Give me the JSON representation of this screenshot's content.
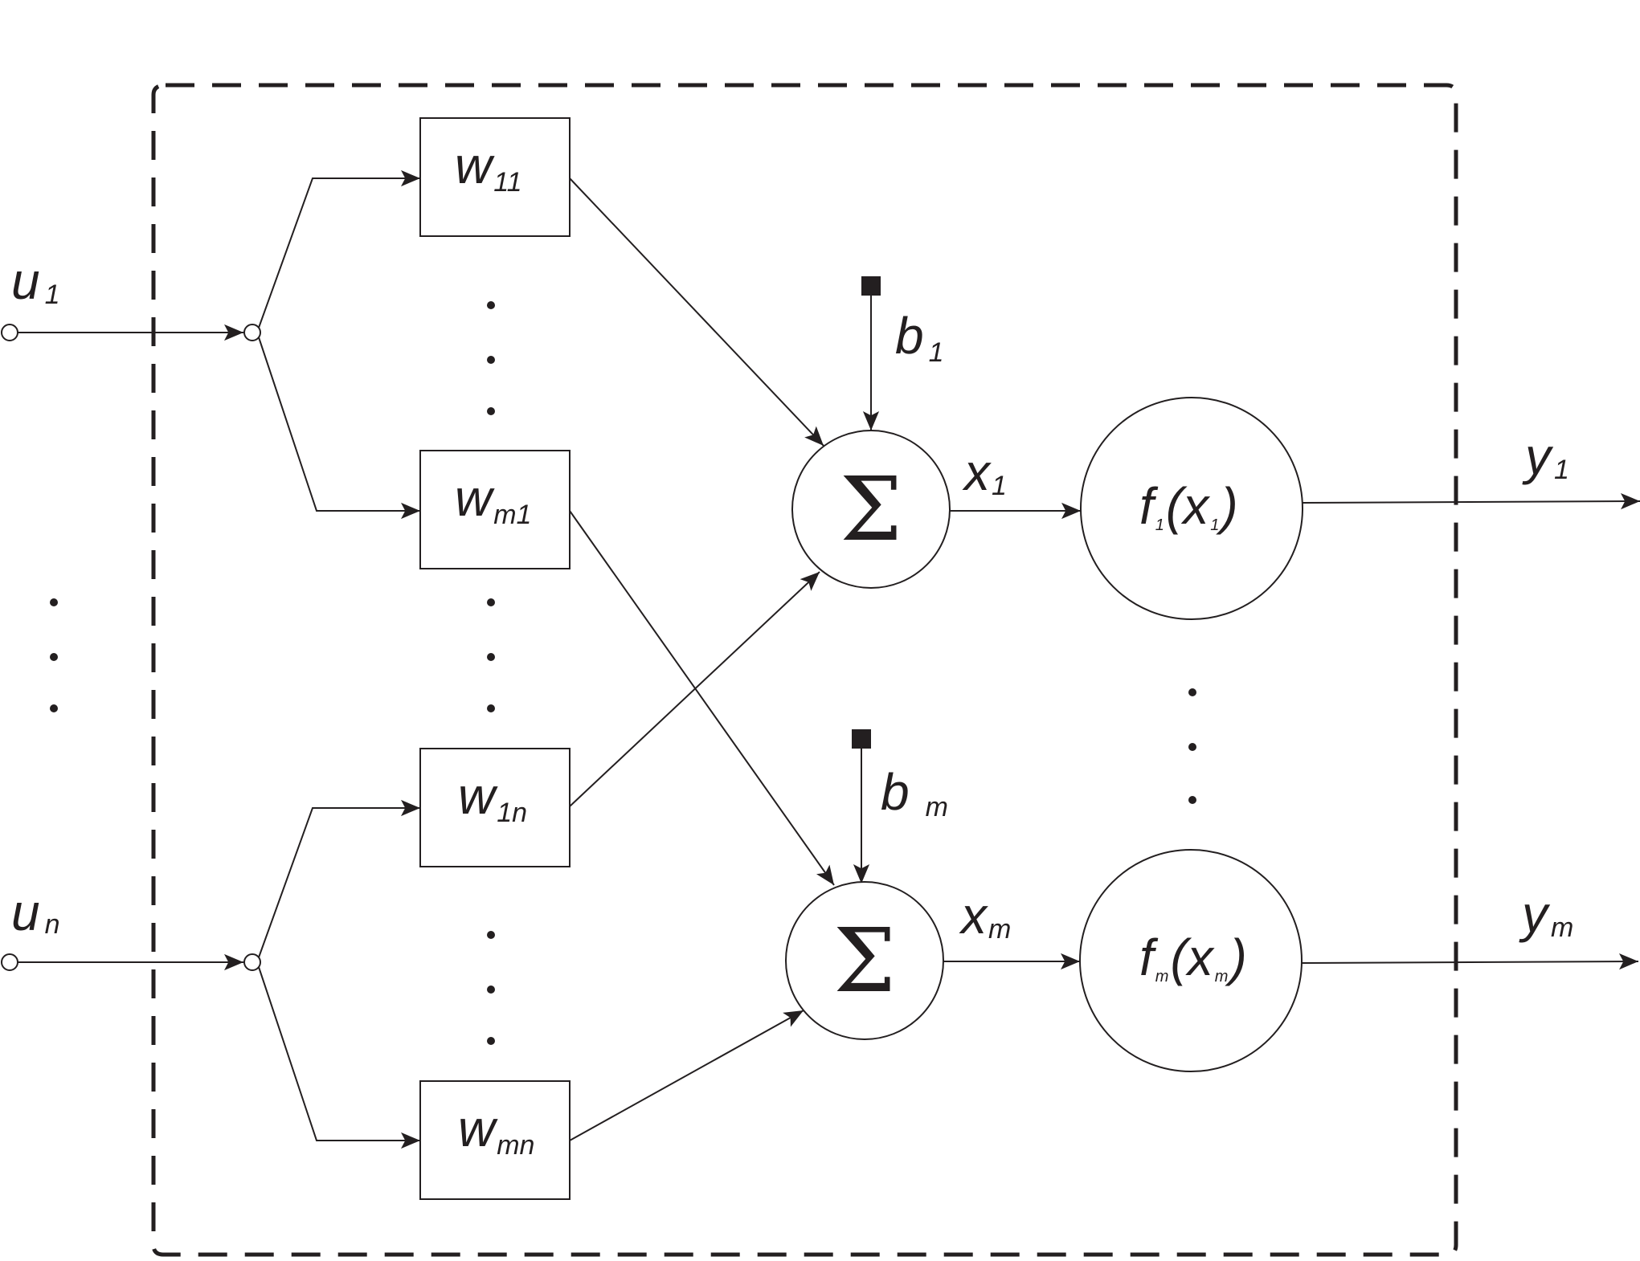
{
  "inputs": [
    {
      "base": "u",
      "sub": "1"
    },
    {
      "base": "u",
      "sub": "n"
    }
  ],
  "weights": [
    {
      "base": "w",
      "sub": "11"
    },
    {
      "base": "w",
      "sub": "m1"
    },
    {
      "base": "w",
      "sub": "1n"
    },
    {
      "base": "w",
      "sub": "mn"
    }
  ],
  "biases": [
    {
      "base": "b",
      "sub": "1"
    },
    {
      "base": "b",
      "sub": "m"
    }
  ],
  "summers": [
    {
      "symbol": "Σ"
    },
    {
      "symbol": "Σ"
    }
  ],
  "sums": [
    {
      "base": "x",
      "sub": "1"
    },
    {
      "base": "x",
      "sub": "m"
    }
  ],
  "activations": [
    {
      "func": "f",
      "sub": "1",
      "open": "(",
      "arg": "x",
      "argsub": "1",
      "close": ")"
    },
    {
      "func": "f",
      "sub": "m",
      "open": "(",
      "arg": "x",
      "argsub": "m",
      "close": ")"
    }
  ],
  "outputs": [
    {
      "base": "y",
      "sub": "1"
    },
    {
      "base": "y",
      "sub": "m"
    }
  ]
}
